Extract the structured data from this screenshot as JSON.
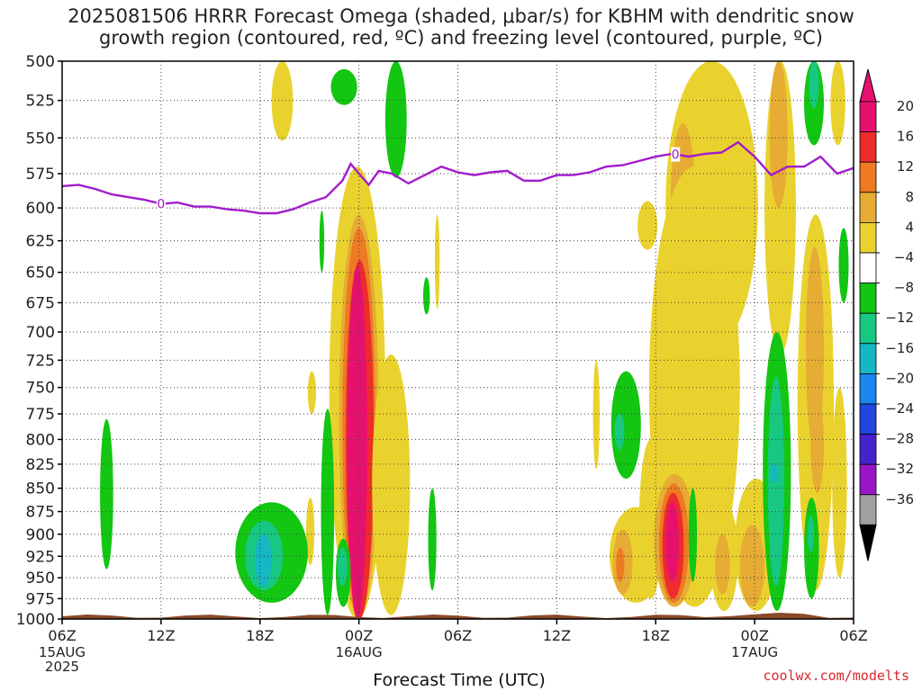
{
  "title": {
    "line1": "2025081506 HRRR Forecast Omega (shaded, μbar/s) for KBHM with dendritic snow",
    "line2": "growth region (contoured, red, ºC) and freezing level (contoured, purple, ºC)"
  },
  "credit": "coolwx.com/modelts",
  "chart_data": {
    "type": "heatmap",
    "xlabel": "Forecast Time (UTC)",
    "ylabel": "",
    "x_ticks": [
      {
        "h": 0,
        "label": "06Z",
        "sub": [
          "15AUG",
          "2025"
        ]
      },
      {
        "h": 6,
        "label": "12Z",
        "sub": []
      },
      {
        "h": 12,
        "label": "18Z",
        "sub": []
      },
      {
        "h": 18,
        "label": "00Z",
        "sub": [
          "16AUG"
        ]
      },
      {
        "h": 24,
        "label": "06Z",
        "sub": []
      },
      {
        "h": 30,
        "label": "12Z",
        "sub": []
      },
      {
        "h": 36,
        "label": "18Z",
        "sub": []
      },
      {
        "h": 42,
        "label": "00Z",
        "sub": [
          "17AUG"
        ]
      },
      {
        "h": 48,
        "label": "06Z",
        "sub": []
      }
    ],
    "xlim": [
      0,
      48
    ],
    "y_ticks": [
      500,
      525,
      550,
      575,
      600,
      625,
      650,
      675,
      700,
      725,
      750,
      775,
      800,
      825,
      850,
      875,
      900,
      925,
      950,
      975,
      1000
    ],
    "ylim": [
      500,
      1000
    ],
    "y_scale": "log-pressure",
    "grid": true,
    "colorbar": {
      "ticks": [
        "20",
        "16",
        "12",
        "8",
        "4",
        "−4",
        "−8",
        "−12",
        "−16",
        "−20",
        "−24",
        "−28",
        "−32",
        "−36"
      ],
      "colors": [
        "#e8106f",
        "#ee2b2d",
        "#ee7a22",
        "#e6ac33",
        "#ead22e",
        "#ffffff",
        "#12c612",
        "#17c782",
        "#15b7c4",
        "#1b85f0",
        "#2045e0",
        "#4622cc",
        "#9b15c8",
        "#a0a0a0"
      ],
      "top_arrow_color": "#e8106f",
      "bottom_arrow_color": "#000000"
    },
    "freezing_level": {
      "color": "#a21ccc",
      "label": "0",
      "label_at_hours": [
        6,
        37.2
      ],
      "points": [
        [
          0,
          584
        ],
        [
          1,
          583
        ],
        [
          2,
          586
        ],
        [
          3,
          590
        ],
        [
          4,
          592
        ],
        [
          5,
          594
        ],
        [
          6,
          597
        ],
        [
          7,
          596
        ],
        [
          8,
          599
        ],
        [
          9,
          599
        ],
        [
          10,
          601
        ],
        [
          11,
          602
        ],
        [
          12,
          604
        ],
        [
          13,
          604
        ],
        [
          14,
          601
        ],
        [
          15,
          596
        ],
        [
          16,
          592
        ],
        [
          17,
          580
        ],
        [
          17.5,
          568
        ],
        [
          18,
          575
        ],
        [
          18.6,
          583
        ],
        [
          19.2,
          573
        ],
        [
          20,
          575
        ],
        [
          21,
          582
        ],
        [
          22,
          576
        ],
        [
          23,
          570
        ],
        [
          24,
          574
        ],
        [
          25,
          576
        ],
        [
          26,
          574
        ],
        [
          27,
          573
        ],
        [
          28,
          580
        ],
        [
          29,
          580
        ],
        [
          30,
          576
        ],
        [
          31,
          576
        ],
        [
          32,
          574
        ],
        [
          33,
          570
        ],
        [
          34,
          569
        ],
        [
          35,
          566
        ],
        [
          36,
          563
        ],
        [
          37,
          561
        ],
        [
          38,
          563
        ],
        [
          39,
          561
        ],
        [
          40,
          560
        ],
        [
          41,
          553
        ],
        [
          42,
          563
        ],
        [
          43,
          576
        ],
        [
          44,
          570
        ],
        [
          45,
          570
        ],
        [
          46,
          563
        ],
        [
          47,
          575
        ],
        [
          48,
          571
        ]
      ]
    },
    "omega_regions": [
      {
        "level": "4",
        "h0": 12.7,
        "h1": 14.0,
        "p0": 500,
        "p1": 552
      },
      {
        "level": "-8",
        "h0": 16.3,
        "h1": 17.9,
        "p0": 505,
        "p1": 528
      },
      {
        "level": "-8",
        "h0": 19.6,
        "h1": 20.9,
        "p0": 500,
        "p1": 578
      },
      {
        "level": "4",
        "h0": 36.6,
        "h1": 42.2,
        "p0": 500,
        "p1": 715
      },
      {
        "level": "8",
        "h0": 36.9,
        "h1": 38.4,
        "p0": 540,
        "p1": 660
      },
      {
        "level": "4",
        "h0": 42.6,
        "h1": 44.5,
        "p0": 500,
        "p1": 720
      },
      {
        "level": "8",
        "h0": 42.9,
        "h1": 44.0,
        "p0": 500,
        "p1": 600
      },
      {
        "level": "-8",
        "h0": 45.0,
        "h1": 46.2,
        "p0": 500,
        "p1": 555
      },
      {
        "level": "-12",
        "h0": 45.3,
        "h1": 45.9,
        "p0": 500,
        "p1": 530
      },
      {
        "level": "4",
        "h0": 46.6,
        "h1": 47.5,
        "p0": 500,
        "p1": 555
      },
      {
        "level": "4",
        "h0": 34.9,
        "h1": 36.1,
        "p0": 595,
        "p1": 632
      },
      {
        "level": "-8",
        "h0": 15.6,
        "h1": 15.9,
        "p0": 602,
        "p1": 650
      },
      {
        "level": "4",
        "h0": 22.6,
        "h1": 22.9,
        "p0": 605,
        "p1": 680
      },
      {
        "level": "-8",
        "h0": 21.9,
        "h1": 22.3,
        "p0": 654,
        "p1": 685
      },
      {
        "level": "4",
        "h0": 16.2,
        "h1": 19.6,
        "p0": 570,
        "p1": 1000
      },
      {
        "level": "8",
        "h0": 16.8,
        "h1": 19.2,
        "p0": 605,
        "p1": 1000
      },
      {
        "level": "12",
        "h0": 17.0,
        "h1": 19.0,
        "p0": 615,
        "p1": 1000
      },
      {
        "level": "16",
        "h0": 17.2,
        "h1": 18.9,
        "p0": 640,
        "p1": 1000
      },
      {
        "level": "20",
        "h0": 17.3,
        "h1": 18.5,
        "p0": 645,
        "p1": 1000
      },
      {
        "level": "4",
        "h0": 18.8,
        "h1": 21.1,
        "p0": 720,
        "p1": 995
      },
      {
        "level": "-8",
        "h0": 15.7,
        "h1": 16.5,
        "p0": 770,
        "p1": 995
      },
      {
        "level": "-8",
        "h0": 16.6,
        "h1": 17.5,
        "p0": 905,
        "p1": 985
      },
      {
        "level": "-12",
        "h0": 16.7,
        "h1": 17.3,
        "p0": 915,
        "p1": 960
      },
      {
        "level": "4",
        "h0": 14.9,
        "h1": 15.4,
        "p0": 735,
        "p1": 775
      },
      {
        "level": "4",
        "h0": 14.8,
        "h1": 15.3,
        "p0": 860,
        "p1": 935
      },
      {
        "level": "-8",
        "h0": 22.2,
        "h1": 22.7,
        "p0": 850,
        "p1": 965
      },
      {
        "level": "-8",
        "h0": 2.3,
        "h1": 3.1,
        "p0": 780,
        "p1": 940
      },
      {
        "level": "-8",
        "h0": 10.5,
        "h1": 14.9,
        "p0": 865,
        "p1": 980
      },
      {
        "level": "-12",
        "h0": 11.1,
        "h1": 13.4,
        "p0": 885,
        "p1": 965
      },
      {
        "level": "-16",
        "h0": 11.7,
        "h1": 12.7,
        "p0": 900,
        "p1": 960
      },
      {
        "level": "4",
        "h0": 32.2,
        "h1": 32.6,
        "p0": 725,
        "p1": 830
      },
      {
        "level": "-8",
        "h0": 33.3,
        "h1": 35.1,
        "p0": 735,
        "p1": 840
      },
      {
        "level": "-12",
        "h0": 33.5,
        "h1": 34.1,
        "p0": 775,
        "p1": 810
      },
      {
        "level": "4",
        "h0": 33.2,
        "h1": 36.4,
        "p0": 870,
        "p1": 980
      },
      {
        "level": "8",
        "h0": 33.4,
        "h1": 34.6,
        "p0": 895,
        "p1": 970
      },
      {
        "level": "12",
        "h0": 33.6,
        "h1": 34.1,
        "p0": 915,
        "p1": 955
      },
      {
        "level": "4",
        "h0": 35.0,
        "h1": 36.4,
        "p0": 800,
        "p1": 975
      },
      {
        "level": "4",
        "h0": 35.6,
        "h1": 41.1,
        "p0": 570,
        "p1": 985
      },
      {
        "level": "8",
        "h0": 35.9,
        "h1": 38.4,
        "p0": 835,
        "p1": 985
      },
      {
        "level": "12",
        "h0": 36.2,
        "h1": 38.0,
        "p0": 845,
        "p1": 980
      },
      {
        "level": "16",
        "h0": 36.4,
        "h1": 37.7,
        "p0": 855,
        "p1": 975
      },
      {
        "level": "20",
        "h0": 36.6,
        "h1": 37.4,
        "p0": 865,
        "p1": 955
      },
      {
        "level": "-8",
        "h0": 38.0,
        "h1": 38.5,
        "p0": 850,
        "p1": 955
      },
      {
        "level": "4",
        "h0": 39.3,
        "h1": 41.0,
        "p0": 865,
        "p1": 990
      },
      {
        "level": "8",
        "h0": 39.6,
        "h1": 40.5,
        "p0": 900,
        "p1": 970
      },
      {
        "level": "4",
        "h0": 40.8,
        "h1": 43.4,
        "p0": 840,
        "p1": 990
      },
      {
        "level": "8",
        "h0": 41.1,
        "h1": 42.6,
        "p0": 890,
        "p1": 985
      },
      {
        "level": "-8",
        "h0": 42.5,
        "h1": 44.2,
        "p0": 700,
        "p1": 990
      },
      {
        "level": "-12",
        "h0": 42.8,
        "h1": 43.8,
        "p0": 740,
        "p1": 960
      },
      {
        "level": "-16",
        "h0": 43.0,
        "h1": 43.4,
        "p0": 825,
        "p1": 845
      },
      {
        "level": "4",
        "h0": 44.6,
        "h1": 46.8,
        "p0": 605,
        "p1": 965
      },
      {
        "level": "8",
        "h0": 45.1,
        "h1": 46.2,
        "p0": 630,
        "p1": 810
      },
      {
        "level": "8",
        "h0": 45.4,
        "h1": 46.2,
        "p0": 760,
        "p1": 855
      },
      {
        "level": "-8",
        "h0": 45.0,
        "h1": 45.9,
        "p0": 860,
        "p1": 975
      },
      {
        "level": "-12",
        "h0": 45.2,
        "h1": 45.6,
        "p0": 880,
        "p1": 920
      },
      {
        "level": "4",
        "h0": 46.7,
        "h1": 47.6,
        "p0": 750,
        "p1": 950
      },
      {
        "level": "-8",
        "h0": 47.1,
        "h1": 47.7,
        "p0": 615,
        "p1": 675
      }
    ]
  }
}
